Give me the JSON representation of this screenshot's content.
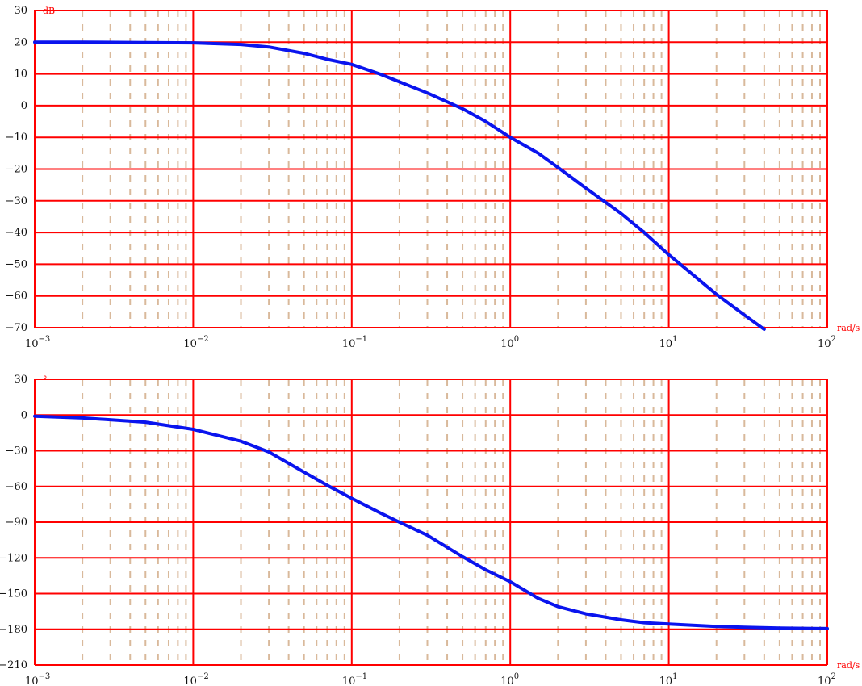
{
  "colors": {
    "major_grid": "#ff0000",
    "minor_grid": "#d9b99b",
    "curve": "#0a14ee",
    "unit_text": "#ff0000"
  },
  "chart_data": [
    {
      "type": "line",
      "title": "",
      "xlabel": "rad/s",
      "ylabel": "dB",
      "x_scale": "log",
      "xlim": [
        0.001,
        100
      ],
      "ylim": [
        -70,
        30
      ],
      "yticks": [
        "30",
        "20",
        "10",
        "0",
        "−10",
        "−20",
        "−30",
        "−40",
        "−50",
        "−60",
        "−70"
      ],
      "xticks": [
        {
          "base": "10",
          "exp": "−3"
        },
        {
          "base": "10",
          "exp": "−2"
        },
        {
          "base": "10",
          "exp": "−1"
        },
        {
          "base": "10",
          "exp": "0"
        },
        {
          "base": "10",
          "exp": "1"
        },
        {
          "base": "10",
          "exp": "2"
        }
      ],
      "grid": true,
      "series": [
        {
          "x": [
            0.001,
            0.002,
            0.005,
            0.01,
            0.02,
            0.03,
            0.05,
            0.07,
            0.1,
            0.15,
            0.2,
            0.3,
            0.5,
            0.7,
            1,
            1.5,
            2,
            3,
            5,
            7,
            10,
            15,
            20,
            30,
            40
          ],
          "y": [
            20,
            20,
            19.9,
            19.8,
            19.3,
            18.5,
            16.5,
            14.6,
            13,
            10,
            7.5,
            4,
            -1,
            -5,
            -10,
            -15,
            -19.5,
            -26,
            -34,
            -40,
            -47,
            -54.3,
            -59.5,
            -66,
            -70.5
          ]
        }
      ]
    },
    {
      "type": "line",
      "title": "",
      "xlabel": "rad/s",
      "ylabel": "°",
      "x_scale": "log",
      "xlim": [
        0.001,
        100
      ],
      "ylim": [
        -210,
        30
      ],
      "yticks": [
        "30",
        "0",
        "−30",
        "−60",
        "−90",
        "−120",
        "−150",
        "−180",
        "−210"
      ],
      "xticks": [
        {
          "base": "10",
          "exp": "−3"
        },
        {
          "base": "10",
          "exp": "−2"
        },
        {
          "base": "10",
          "exp": "−1"
        },
        {
          "base": "10",
          "exp": "0"
        },
        {
          "base": "10",
          "exp": "1"
        },
        {
          "base": "10",
          "exp": "2"
        }
      ],
      "grid": true,
      "series": [
        {
          "x": [
            0.001,
            0.002,
            0.005,
            0.01,
            0.02,
            0.03,
            0.05,
            0.07,
            0.1,
            0.15,
            0.2,
            0.3,
            0.5,
            0.7,
            1,
            1.5,
            2,
            3,
            5,
            7,
            10,
            20,
            30,
            50,
            100
          ],
          "y": [
            -1,
            -2.5,
            -6,
            -12,
            -22,
            -31,
            -48,
            -59,
            -70,
            -82,
            -90,
            -101,
            -119,
            -130,
            -140,
            -154,
            -161,
            -167,
            -172,
            -174.5,
            -175.6,
            -177.6,
            -178.3,
            -179,
            -179.4
          ]
        }
      ]
    }
  ]
}
